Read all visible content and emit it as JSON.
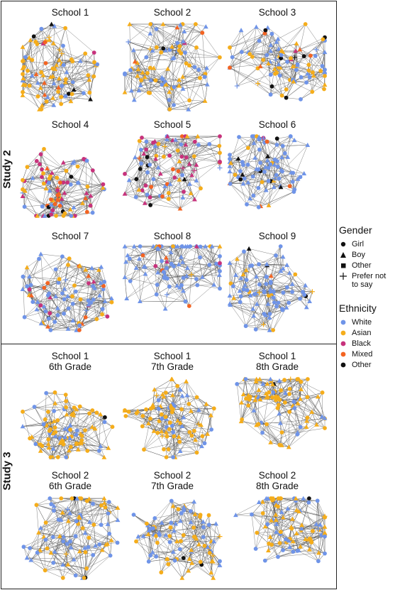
{
  "study2": {
    "label": "Study 2",
    "panels": [
      {
        "title": "School 1",
        "seed": 11,
        "mix": {
          "Asian": 0.62,
          "White": 0.28,
          "Black": 0.03,
          "Mixed": 0.03,
          "Other": 0.04
        }
      },
      {
        "title": "School 2",
        "seed": 22,
        "mix": {
          "Asian": 0.45,
          "White": 0.48,
          "Black": 0.02,
          "Mixed": 0.02,
          "Other": 0.03
        }
      },
      {
        "title": "School 3",
        "seed": 33,
        "mix": {
          "Asian": 0.42,
          "White": 0.45,
          "Black": 0.04,
          "Mixed": 0.05,
          "Other": 0.04
        }
      },
      {
        "title": "School 4",
        "seed": 44,
        "mix": {
          "Asian": 0.32,
          "White": 0.22,
          "Black": 0.34,
          "Mixed": 0.08,
          "Other": 0.04
        }
      },
      {
        "title": "School 5",
        "seed": 55,
        "mix": {
          "Asian": 0.18,
          "White": 0.3,
          "Black": 0.4,
          "Mixed": 0.07,
          "Other": 0.05
        }
      },
      {
        "title": "School 6",
        "seed": 66,
        "mix": {
          "Asian": 0.08,
          "White": 0.8,
          "Black": 0.02,
          "Mixed": 0.04,
          "Other": 0.06
        }
      },
      {
        "title": "School 7",
        "seed": 77,
        "mix": {
          "Asian": 0.18,
          "White": 0.58,
          "Black": 0.14,
          "Mixed": 0.07,
          "Other": 0.03
        }
      },
      {
        "title": "School 8",
        "seed": 88,
        "mix": {
          "Asian": 0.06,
          "White": 0.86,
          "Black": 0.03,
          "Mixed": 0.04,
          "Other": 0.01
        }
      },
      {
        "title": "School 9",
        "seed": 99,
        "mix": {
          "Asian": 0.12,
          "White": 0.8,
          "Black": 0.0,
          "Mixed": 0.05,
          "Other": 0.03
        }
      }
    ]
  },
  "study3": {
    "label": "Study 3",
    "panels": [
      {
        "title": "School 1",
        "subtitle": "6th Grade",
        "seed": 101,
        "mix": {
          "Asian": 0.78,
          "White": 0.2,
          "Black": 0.0,
          "Mixed": 0.0,
          "Other": 0.02
        }
      },
      {
        "title": "School 1",
        "subtitle": "7th Grade",
        "seed": 102,
        "mix": {
          "Asian": 0.74,
          "White": 0.24,
          "Black": 0.0,
          "Mixed": 0.0,
          "Other": 0.02
        }
      },
      {
        "title": "School 1",
        "subtitle": "8th Grade",
        "seed": 103,
        "mix": {
          "Asian": 0.7,
          "White": 0.28,
          "Black": 0.0,
          "Mixed": 0.0,
          "Other": 0.02
        }
      },
      {
        "title": "School 2",
        "subtitle": "6th Grade",
        "seed": 104,
        "mix": {
          "Asian": 0.5,
          "White": 0.48,
          "Black": 0.0,
          "Mixed": 0.0,
          "Other": 0.02
        }
      },
      {
        "title": "School 2",
        "subtitle": "7th Grade",
        "seed": 105,
        "mix": {
          "Asian": 0.45,
          "White": 0.53,
          "Black": 0.0,
          "Mixed": 0.0,
          "Other": 0.02
        }
      },
      {
        "title": "School 2",
        "subtitle": "8th Grade",
        "seed": 106,
        "mix": {
          "Asian": 0.55,
          "White": 0.43,
          "Black": 0.0,
          "Mixed": 0.0,
          "Other": 0.02
        }
      }
    ]
  },
  "legend": {
    "gender_title": "Gender",
    "gender": [
      {
        "label": "Girl",
        "shape": "circle"
      },
      {
        "label": "Boy",
        "shape": "triangle"
      },
      {
        "label": "Other",
        "shape": "square"
      },
      {
        "label": "Prefer not to say",
        "shape": "plus"
      }
    ],
    "ethnicity_title": "Ethnicity",
    "ethnicity": [
      {
        "label": "White",
        "color": "#6f94e8"
      },
      {
        "label": "Asian",
        "color": "#f5ad1b"
      },
      {
        "label": "Black",
        "color": "#c7327c"
      },
      {
        "label": "Mixed",
        "color": "#f36422"
      },
      {
        "label": "Other",
        "color": "#111111"
      }
    ]
  },
  "colors": {
    "edge": "#555555",
    "frame": "#222222"
  }
}
